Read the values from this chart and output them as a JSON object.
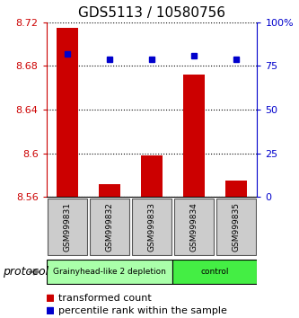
{
  "title": "GDS5113 / 10580756",
  "samples": [
    "GSM999831",
    "GSM999832",
    "GSM999833",
    "GSM999834",
    "GSM999835"
  ],
  "transformed_counts": [
    8.715,
    8.572,
    8.598,
    8.672,
    8.575
  ],
  "percentile_ranks": [
    82,
    79,
    79,
    81,
    79
  ],
  "baseline": 8.56,
  "ylim_left": [
    8.56,
    8.72
  ],
  "ylim_right": [
    0,
    100
  ],
  "yticks_left": [
    8.56,
    8.6,
    8.64,
    8.68,
    8.72
  ],
  "yticks_right": [
    0,
    25,
    50,
    75,
    100
  ],
  "ytick_labels_left": [
    "8.56",
    "8.6",
    "8.64",
    "8.68",
    "8.72"
  ],
  "ytick_labels_right": [
    "0",
    "25",
    "50",
    "75",
    "100%"
  ],
  "bar_color": "#cc0000",
  "dot_color": "#0000cc",
  "groups": [
    {
      "label": "Grainyhead-like 2 depletion",
      "samples": [
        0,
        1,
        2
      ],
      "color": "#aaffaa"
    },
    {
      "label": "control",
      "samples": [
        3,
        4
      ],
      "color": "#44ee44"
    }
  ],
  "protocol_label": "protocol",
  "legend_items": [
    {
      "color": "#cc0000",
      "label": "transformed count"
    },
    {
      "color": "#0000cc",
      "label": "percentile rank within the sample"
    }
  ],
  "left_color": "#cc0000",
  "right_color": "#0000cc",
  "tick_box_color": "#cccccc",
  "tick_box_border": "#555555"
}
